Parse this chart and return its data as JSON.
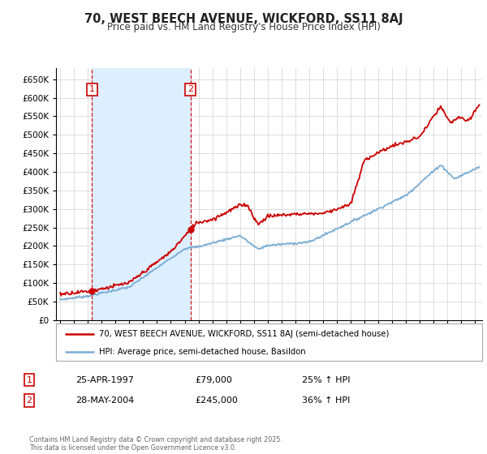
{
  "title": "70, WEST BEECH AVENUE, WICKFORD, SS11 8AJ",
  "subtitle": "Price paid vs. HM Land Registry's House Price Index (HPI)",
  "ylim": [
    0,
    680000
  ],
  "xlim_start": 1994.7,
  "xlim_end": 2025.5,
  "sale1_date": 1997.3,
  "sale1_price": 79000,
  "sale1_label": "1",
  "sale2_date": 2004.42,
  "sale2_price": 245000,
  "sale2_label": "2",
  "legend_line1": "70, WEST BEECH AVENUE, WICKFORD, SS11 8AJ (semi-detached house)",
  "legend_line2": "HPI: Average price, semi-detached house, Basildon",
  "table_row1": [
    "1",
    "25-APR-1997",
    "£79,000",
    "25% ↑ HPI"
  ],
  "table_row2": [
    "2",
    "28-MAY-2004",
    "£245,000",
    "36% ↑ HPI"
  ],
  "footer": "Contains HM Land Registry data © Crown copyright and database right 2025.\nThis data is licensed under the Open Government Licence v3.0.",
  "red_color": "#cc0000",
  "blue_color": "#7aadd4",
  "highlight_color": "#ddeeff",
  "grid_color": "#dddddd",
  "bg_color": "#ffffff",
  "plot_bg_color": "#ffffff"
}
